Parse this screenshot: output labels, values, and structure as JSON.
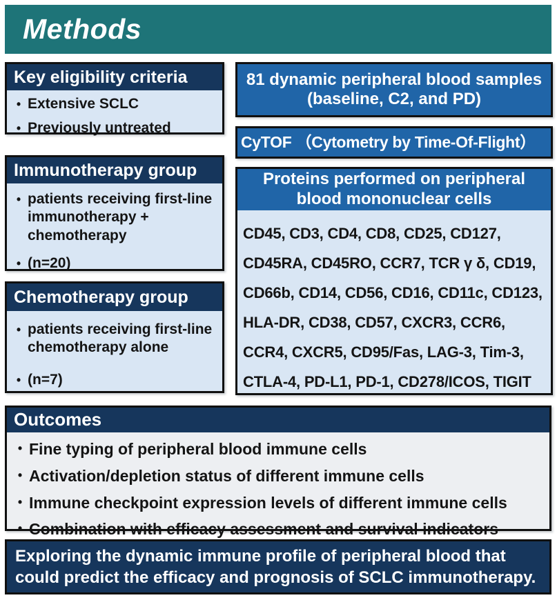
{
  "colors": {
    "teal": "#1e7478",
    "navy": "#16365c",
    "blue": "#2065a8",
    "lightblue": "#d9e6f4",
    "lightgray": "#edeff2"
  },
  "glyphs": {
    "bullet": "•"
  },
  "banner": {
    "title": "Methods"
  },
  "left_boxes": [
    {
      "header": "Key eligibility criteria",
      "bullets": [
        "Extensive SCLC",
        "Previously untreated"
      ]
    },
    {
      "header": "Immunotherapy group",
      "bullets": [
        "patients receiving first-line immunotherapy + chemotherapy",
        "(n=20)"
      ]
    },
    {
      "header": "Chemotherapy group",
      "bullets": [
        "patients receiving first-line chemotherapy alone",
        "(n=7)"
      ]
    }
  ],
  "right_boxes": {
    "samples_lines": [
      "81 dynamic peripheral blood samples",
      "(baseline, C2, and PD)"
    ],
    "cytof": "CyTOF （Cytometry by Time-Of-Flight）",
    "proteins_header_lines": [
      "Proteins performed on peripheral",
      "blood mononuclear cells"
    ],
    "protein_lines": [
      "CD45, CD3, CD4, CD8, CD25, CD127,",
      "CD45RA, CD45RO, CCR7, TCR γ δ, CD19,",
      "CD66b, CD14, CD56, CD16, CD11c, CD123,",
      "HLA-DR, CD38, CD57, CXCR3, CCR6,",
      "CCR4, CXCR5, CD95/Fas, LAG-3, Tim-3,",
      "CTLA-4, PD-L1, PD-1, CD278/ICOS, TIGIT"
    ]
  },
  "outcomes": {
    "header": "Outcomes",
    "bullets": [
      "Fine typing of peripheral blood immune cells",
      "Activation/depletion status of different immune cells",
      "Immune checkpoint expression levels of different immune cells",
      "Combination with efficacy assessment and survival indicators"
    ]
  },
  "conclusion_lines": [
    "Exploring the dynamic immune profile of peripheral blood that",
    "could predict the efficacy and prognosis of SCLC immunotherapy."
  ]
}
